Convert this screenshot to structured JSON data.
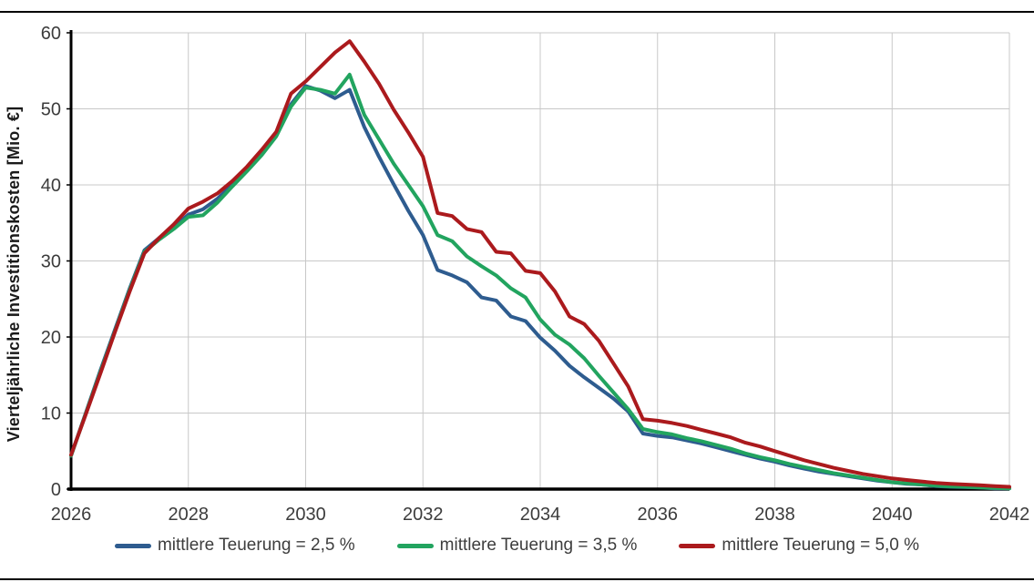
{
  "figure": {
    "top_rule": true,
    "bottom_rule": true,
    "background": "#ffffff"
  },
  "chart_data": {
    "type": "line",
    "title": "",
    "xlabel": "",
    "ylabel": "Vierteljährliche Investitionskosten [Mio. €]",
    "xlim": [
      2026,
      2042
    ],
    "ylim": [
      0,
      60
    ],
    "x_ticks": [
      2026,
      2028,
      2030,
      2032,
      2034,
      2036,
      2038,
      2040,
      2042
    ],
    "y_ticks": [
      0,
      10,
      20,
      30,
      40,
      50,
      60
    ],
    "grid": true,
    "grid_color": "#c8c8c8",
    "axis_color": "#000000",
    "tick_label_color": "#3c3c3c",
    "legend_position": "bottom",
    "x": [
      2026.0,
      2026.25,
      2026.5,
      2026.75,
      2027.0,
      2027.25,
      2027.5,
      2027.75,
      2028.0,
      2028.25,
      2028.5,
      2028.75,
      2029.0,
      2029.25,
      2029.5,
      2029.75,
      2030.0,
      2030.25,
      2030.5,
      2030.75,
      2031.0,
      2031.25,
      2031.5,
      2031.75,
      2032.0,
      2032.25,
      2032.5,
      2032.75,
      2033.0,
      2033.25,
      2033.5,
      2033.75,
      2034.0,
      2034.25,
      2034.5,
      2034.75,
      2035.0,
      2035.25,
      2035.5,
      2035.75,
      2036.0,
      2036.25,
      2036.5,
      2036.75,
      2037.0,
      2037.25,
      2037.5,
      2037.75,
      2038.0,
      2038.25,
      2038.5,
      2038.75,
      2039.0,
      2039.25,
      2039.5,
      2039.75,
      2040.0,
      2040.25,
      2040.5,
      2040.75,
      2041.0,
      2041.25,
      2041.5,
      2041.75,
      2042.0
    ],
    "series": [
      {
        "name": "mittlere Teuerung = 2,5 %",
        "color": "#2E5C8F",
        "values": [
          4.4,
          10.0,
          15.6,
          21.0,
          26.4,
          31.4,
          33.0,
          34.4,
          36.1,
          36.8,
          38.2,
          40.0,
          42.0,
          44.3,
          46.8,
          50.6,
          53.0,
          52.4,
          51.4,
          52.5,
          47.6,
          43.7,
          40.1,
          36.6,
          33.4,
          28.8,
          28.1,
          27.2,
          25.2,
          24.8,
          22.7,
          22.1,
          19.9,
          18.2,
          16.2,
          14.7,
          13.3,
          11.9,
          10.2,
          7.3,
          7.0,
          6.8,
          6.4,
          6.0,
          5.5,
          5.0,
          4.5,
          4.0,
          3.6,
          3.1,
          2.7,
          2.3,
          2.0,
          1.7,
          1.4,
          1.1,
          0.9,
          0.7,
          0.6,
          0.4,
          0.3,
          0.25,
          0.2,
          0.1,
          0.1
        ]
      },
      {
        "name": "mittlere Teuerung = 3,5 %",
        "color": "#22A45F",
        "values": [
          4.4,
          9.9,
          15.4,
          20.8,
          26.2,
          31.2,
          32.8,
          34.2,
          35.8,
          36.0,
          37.7,
          39.8,
          41.8,
          43.9,
          46.4,
          50.3,
          52.8,
          52.5,
          52.0,
          54.5,
          49.2,
          46.0,
          42.8,
          40.0,
          37.2,
          33.4,
          32.6,
          30.6,
          29.3,
          28.1,
          26.4,
          25.2,
          22.3,
          20.3,
          19.0,
          17.2,
          14.9,
          12.7,
          10.5,
          7.9,
          7.5,
          7.2,
          6.7,
          6.3,
          5.8,
          5.3,
          4.7,
          4.2,
          3.8,
          3.3,
          2.9,
          2.5,
          2.1,
          1.8,
          1.5,
          1.2,
          0.9,
          0.75,
          0.6,
          0.45,
          0.35,
          0.3,
          0.2,
          0.15,
          0.1
        ]
      },
      {
        "name": "mittlere Teuerung = 5,0 %",
        "color": "#AB1A1D",
        "values": [
          4.5,
          9.8,
          15.2,
          20.7,
          26.0,
          31.0,
          33.0,
          34.8,
          36.9,
          37.8,
          38.9,
          40.5,
          42.4,
          44.6,
          47.0,
          52.0,
          53.6,
          55.5,
          57.4,
          58.9,
          56.2,
          53.3,
          49.9,
          46.9,
          43.7,
          36.3,
          35.9,
          34.2,
          33.8,
          31.2,
          31.0,
          28.7,
          28.4,
          26.0,
          22.7,
          21.7,
          19.5,
          16.5,
          13.5,
          9.2,
          9.0,
          8.7,
          8.3,
          7.8,
          7.3,
          6.8,
          6.1,
          5.6,
          5.0,
          4.4,
          3.8,
          3.3,
          2.8,
          2.4,
          2.0,
          1.7,
          1.4,
          1.2,
          1.0,
          0.8,
          0.7,
          0.6,
          0.5,
          0.4,
          0.3
        ]
      }
    ]
  }
}
